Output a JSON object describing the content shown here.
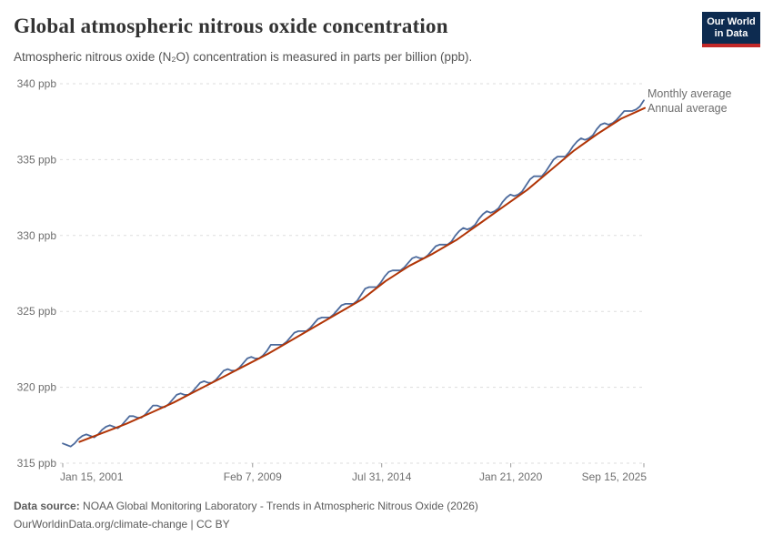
{
  "header": {
    "title": "Global atmospheric nitrous oxide concentration",
    "subtitle": "Atmospheric nitrous oxide (N₂O) concentration is measured in parts per billion (ppb).",
    "logo": {
      "line1": "Our World",
      "line2": "in Data"
    }
  },
  "footer": {
    "source_label": "Data source:",
    "source_text": "NOAA Global Monitoring Laboratory - Trends in Atmospheric Nitrous Oxide (2026)",
    "license_line": "OurWorldinData.org/climate-change | CC BY"
  },
  "colors": {
    "monthly_line": "#4C6A9C",
    "annual_line": "#B13507",
    "grid": "#dddddd",
    "axis_text": "#6e6e6e",
    "logo_bg": "#0d2b50",
    "logo_stripe": "#c22828"
  },
  "chart_data": {
    "type": "line",
    "title": "Global atmospheric nitrous oxide concentration",
    "subtitle": "Atmospheric nitrous oxide (N₂O) concentration is measured in parts per billion (ppb).",
    "unit": "ppb",
    "grid": true,
    "legend_position": "right-of-line-ends",
    "ylim": [
      315,
      340
    ],
    "yticks": [
      {
        "value": 315,
        "label": "315 ppb"
      },
      {
        "value": 320,
        "label": "320 ppb"
      },
      {
        "value": 325,
        "label": "325 ppb"
      },
      {
        "value": 330,
        "label": "330 ppb"
      },
      {
        "value": 335,
        "label": "335 ppb"
      },
      {
        "value": 340,
        "label": "340 ppb"
      }
    ],
    "xlim_t": [
      2001.04,
      2025.71
    ],
    "xticks": [
      {
        "t": 2001.04,
        "label": "Jan 15, 2001",
        "align": "start"
      },
      {
        "t": 2009.1,
        "label": "Feb 7, 2009",
        "align": "middle"
      },
      {
        "t": 2014.58,
        "label": "Jul 31, 2014",
        "align": "middle"
      },
      {
        "t": 2020.06,
        "label": "Jan 21, 2020",
        "align": "middle"
      },
      {
        "t": 2025.71,
        "label": "Sep 15, 2025",
        "align": "end"
      }
    ],
    "series": [
      {
        "name": "Monthly average",
        "color": "#4C6A9C",
        "kind": "monthly",
        "start_year": 2001,
        "sample_months": [
          1,
          3,
          5,
          7,
          9,
          11
        ],
        "values_by_year": [
          [
            316.3,
            316.2,
            316.1,
            316.3,
            316.6,
            316.8
          ],
          [
            316.9,
            316.8,
            316.7,
            316.9,
            317.2,
            317.4
          ],
          [
            317.5,
            317.4,
            317.3,
            317.5,
            317.8,
            318.1
          ],
          [
            318.1,
            318.0,
            318.0,
            318.2,
            318.5,
            318.8
          ],
          [
            318.8,
            318.7,
            318.7,
            318.9,
            319.2,
            319.5
          ],
          [
            319.6,
            319.5,
            319.5,
            319.7,
            320.0,
            320.3
          ],
          [
            320.4,
            320.3,
            320.3,
            320.5,
            320.8,
            321.1
          ],
          [
            321.2,
            321.1,
            321.1,
            321.3,
            321.6,
            321.9
          ],
          [
            322.0,
            321.9,
            321.9,
            322.1,
            322.4,
            322.8
          ],
          [
            322.8,
            322.8,
            322.8,
            323.0,
            323.3,
            323.6
          ],
          [
            323.7,
            323.7,
            323.7,
            323.9,
            324.2,
            324.5
          ],
          [
            324.6,
            324.6,
            324.6,
            324.8,
            325.1,
            325.4
          ],
          [
            325.5,
            325.5,
            325.5,
            325.7,
            326.1,
            326.5
          ],
          [
            326.6,
            326.6,
            326.6,
            326.9,
            327.3,
            327.6
          ],
          [
            327.7,
            327.7,
            327.7,
            327.9,
            328.2,
            328.5
          ],
          [
            328.6,
            328.5,
            328.5,
            328.7,
            329.0,
            329.3
          ],
          [
            329.4,
            329.4,
            329.4,
            329.6,
            330.0,
            330.3
          ],
          [
            330.5,
            330.4,
            330.5,
            330.7,
            331.1,
            331.4
          ],
          [
            331.6,
            331.5,
            331.6,
            331.8,
            332.2,
            332.5
          ],
          [
            332.7,
            332.6,
            332.7,
            332.9,
            333.3,
            333.7
          ],
          [
            333.9,
            333.9,
            333.9,
            334.2,
            334.6,
            335.0
          ],
          [
            335.2,
            335.2,
            335.2,
            335.5,
            335.9,
            336.2
          ],
          [
            336.4,
            336.3,
            336.4,
            336.6,
            337.0,
            337.3
          ],
          [
            337.4,
            337.3,
            337.4,
            337.6,
            337.9,
            338.2
          ],
          [
            338.2,
            338.2,
            338.3,
            338.5,
            338.9
          ]
        ]
      },
      {
        "name": "Annual average",
        "color": "#B13507",
        "kind": "annual",
        "years": [
          2001,
          2002,
          2003,
          2004,
          2005,
          2006,
          2007,
          2008,
          2009,
          2010,
          2011,
          2012,
          2013,
          2014,
          2015,
          2016,
          2017,
          2018,
          2019,
          2020,
          2021,
          2022,
          2023,
          2024,
          2025
        ],
        "values": [
          316.4,
          317.0,
          317.6,
          318.3,
          319.0,
          319.8,
          320.6,
          321.4,
          322.2,
          323.1,
          324.0,
          324.9,
          325.8,
          327.0,
          328.0,
          328.8,
          329.7,
          330.8,
          331.9,
          333.0,
          334.3,
          335.6,
          336.7,
          337.7,
          338.4
        ]
      }
    ]
  }
}
